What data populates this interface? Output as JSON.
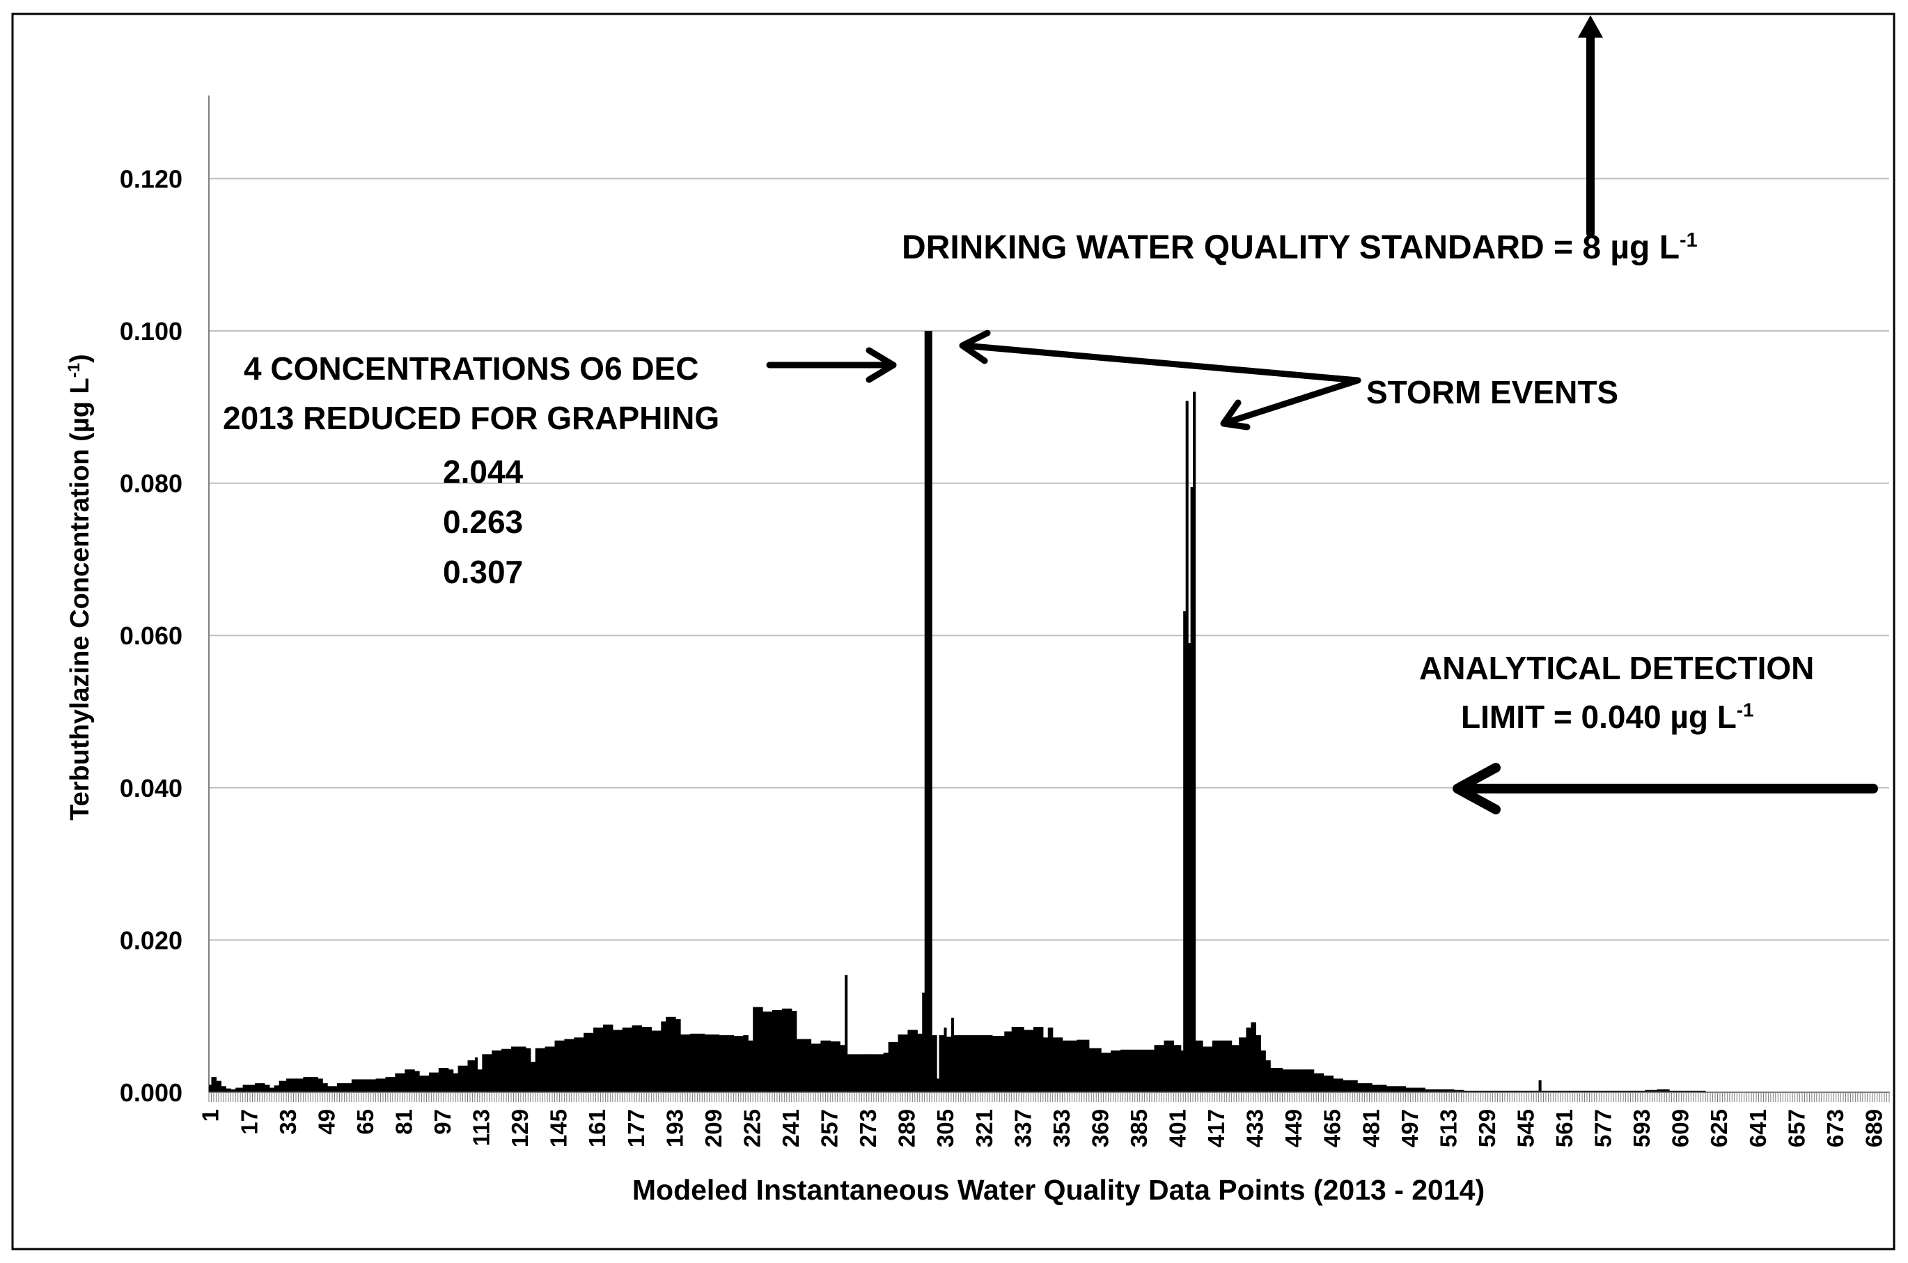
{
  "chart_data": {
    "type": "area",
    "title": "",
    "ylabel": "Terbuthylazine Concentration (µg L",
    "ylabel_superscript": "-1",
    "ylabel_suffix": ")",
    "xlabel": "Modeled Instantaneous Water Quality Data Points (2013 - 2014)",
    "ylim": [
      0,
      0.13
    ],
    "xlim": [
      1,
      695
    ],
    "y_ticks": [
      "0.000",
      "0.020",
      "0.040",
      "0.060",
      "0.080",
      "0.100",
      "0.120"
    ],
    "y_tick_values": [
      0,
      0.02,
      0.04,
      0.06,
      0.08,
      0.1,
      0.12
    ],
    "x_ticks": [
      1,
      17,
      33,
      49,
      65,
      81,
      97,
      113,
      129,
      145,
      161,
      177,
      193,
      209,
      225,
      241,
      257,
      273,
      289,
      305,
      321,
      337,
      353,
      369,
      385,
      401,
      417,
      433,
      449,
      465,
      481,
      497,
      513,
      529,
      545,
      561,
      577,
      593,
      609,
      625,
      641,
      657,
      673,
      689
    ],
    "grid": true,
    "series": [
      {
        "name": "Terbuthylazine",
        "breakpoints": [
          [
            1,
            0.001
          ],
          [
            2,
            0.002
          ],
          [
            4,
            0.0015
          ],
          [
            6,
            0.0008
          ],
          [
            8,
            0.0005
          ],
          [
            10,
            0.0004
          ],
          [
            12,
            0.0006
          ],
          [
            15,
            0.001
          ],
          [
            20,
            0.0012
          ],
          [
            24,
            0.001
          ],
          [
            26,
            0.0006
          ],
          [
            28,
            0.0009
          ],
          [
            30,
            0.0015
          ],
          [
            33,
            0.0018
          ],
          [
            40,
            0.002
          ],
          [
            46,
            0.0018
          ],
          [
            48,
            0.0012
          ],
          [
            50,
            0.0008
          ],
          [
            54,
            0.0012
          ],
          [
            60,
            0.0017
          ],
          [
            70,
            0.0018
          ],
          [
            74,
            0.002
          ],
          [
            78,
            0.0025
          ],
          [
            82,
            0.003
          ],
          [
            86,
            0.0028
          ],
          [
            88,
            0.0022
          ],
          [
            92,
            0.0026
          ],
          [
            96,
            0.0032
          ],
          [
            100,
            0.003
          ],
          [
            102,
            0.0025
          ],
          [
            104,
            0.0035
          ],
          [
            108,
            0.0042
          ],
          [
            111,
            0.0046
          ],
          [
            112,
            0.003
          ],
          [
            114,
            0.005
          ],
          [
            118,
            0.0055
          ],
          [
            122,
            0.0057
          ],
          [
            126,
            0.006
          ],
          [
            132,
            0.0058
          ],
          [
            134,
            0.004
          ],
          [
            136,
            0.0058
          ],
          [
            140,
            0.006
          ],
          [
            144,
            0.0068
          ],
          [
            148,
            0.007
          ],
          [
            152,
            0.0072
          ],
          [
            156,
            0.0078
          ],
          [
            160,
            0.0085
          ],
          [
            164,
            0.0089
          ],
          [
            168,
            0.0082
          ],
          [
            172,
            0.0085
          ],
          [
            176,
            0.0088
          ],
          [
            180,
            0.0086
          ],
          [
            184,
            0.0081
          ],
          [
            188,
            0.0093
          ],
          [
            190,
            0.0099
          ],
          [
            194,
            0.0096
          ],
          [
            196,
            0.0076
          ],
          [
            200,
            0.0077
          ],
          [
            206,
            0.0076
          ],
          [
            212,
            0.0075
          ],
          [
            218,
            0.0074
          ],
          [
            222,
            0.0075
          ],
          [
            224,
            0.0068
          ],
          [
            226,
            0.0112
          ],
          [
            230,
            0.0106
          ],
          [
            234,
            0.0108
          ],
          [
            238,
            0.011
          ],
          [
            242,
            0.0107
          ],
          [
            244,
            0.007
          ],
          [
            250,
            0.0064
          ],
          [
            254,
            0.0068
          ],
          [
            258,
            0.0067
          ],
          [
            262,
            0.0062
          ],
          [
            264,
            0.0154
          ],
          [
            265,
            0.005
          ],
          [
            270,
            0.005
          ],
          [
            278,
            0.005
          ],
          [
            280,
            0.0052
          ],
          [
            282,
            0.0066
          ],
          [
            286,
            0.0076
          ],
          [
            290,
            0.0082
          ],
          [
            294,
            0.0077
          ],
          [
            296,
            0.0131
          ],
          [
            297,
            0.1
          ],
          [
            300,
            0.0075
          ],
          [
            302,
            0.0018
          ],
          [
            303,
            0.0075
          ],
          [
            305,
            0.0085
          ],
          [
            306,
            0.0073
          ],
          [
            308,
            0.0098
          ],
          [
            309,
            0.0075
          ],
          [
            315,
            0.0075
          ],
          [
            325,
            0.0074
          ],
          [
            330,
            0.008
          ],
          [
            333,
            0.0086
          ],
          [
            338,
            0.0082
          ],
          [
            342,
            0.0086
          ],
          [
            346,
            0.0072
          ],
          [
            348,
            0.0085
          ],
          [
            350,
            0.0072
          ],
          [
            354,
            0.0068
          ],
          [
            360,
            0.0069
          ],
          [
            365,
            0.0058
          ],
          [
            370,
            0.0052
          ],
          [
            374,
            0.0055
          ],
          [
            378,
            0.0056
          ],
          [
            388,
            0.0056
          ],
          [
            392,
            0.0062
          ],
          [
            396,
            0.0068
          ],
          [
            400,
            0.0062
          ],
          [
            403,
            0.0055
          ],
          [
            404,
            0.0632
          ],
          [
            405,
            0.0908
          ],
          [
            406,
            0.059
          ],
          [
            407,
            0.0795
          ],
          [
            408,
            0.092
          ],
          [
            409,
            0.0068
          ],
          [
            412,
            0.006
          ],
          [
            416,
            0.0068
          ],
          [
            420,
            0.0068
          ],
          [
            424,
            0.0062
          ],
          [
            427,
            0.0072
          ],
          [
            430,
            0.0085
          ],
          [
            432,
            0.0092
          ],
          [
            434,
            0.0075
          ],
          [
            436,
            0.0055
          ],
          [
            438,
            0.0042
          ],
          [
            440,
            0.0032
          ],
          [
            445,
            0.003
          ],
          [
            452,
            0.003
          ],
          [
            458,
            0.0025
          ],
          [
            462,
            0.0022
          ],
          [
            466,
            0.0018
          ],
          [
            470,
            0.0016
          ],
          [
            476,
            0.0012
          ],
          [
            482,
            0.001
          ],
          [
            488,
            0.0008
          ],
          [
            496,
            0.0006
          ],
          [
            504,
            0.0004
          ],
          [
            512,
            0.0004
          ],
          [
            516,
            0.0003
          ],
          [
            520,
            0.0002
          ],
          [
            530,
            0.0002
          ],
          [
            545,
            0.0002
          ],
          [
            551,
            0.0016
          ],
          [
            552,
            0.0002
          ],
          [
            560,
            0.0002
          ],
          [
            580,
            0.0002
          ],
          [
            595,
            0.0003
          ],
          [
            600,
            0.0004
          ],
          [
            605,
            0.0002
          ],
          [
            612,
            0.0002
          ],
          [
            620,
            0.0001
          ],
          [
            695,
            0.0001
          ]
        ]
      }
    ],
    "annotations": {
      "reduced_line1": "4 CONCENTRATIONS  O6 DEC",
      "reduced_line2": "2013 REDUCED FOR GRAPHING",
      "reduced_values": [
        "2.044",
        "0.263",
        "0.307"
      ],
      "storm_events": "STORM EVENTS",
      "dwqs_text": "DRINKING WATER QUALITY STANDARD = 8 µg L",
      "dwqs_superscript": "-1",
      "detection_line1": "ANALYTICAL DETECTION",
      "detection_line2": "LIMIT = 0.040 µg L",
      "detection_superscript": "-1"
    },
    "colors": {
      "fill": "#000000",
      "grid": "#bfbfbf",
      "axis": "#808080",
      "frame": "#000000"
    }
  }
}
